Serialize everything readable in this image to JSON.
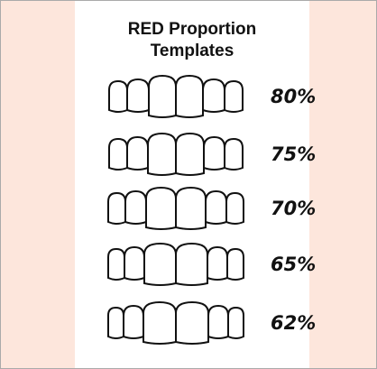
{
  "title": {
    "line1": "RED Proportion",
    "line2": "Templates"
  },
  "rows": [
    {
      "label": "80%"
    },
    {
      "label": "75%"
    },
    {
      "label": "70%"
    },
    {
      "label": "65%"
    },
    {
      "label": "62%"
    }
  ]
}
